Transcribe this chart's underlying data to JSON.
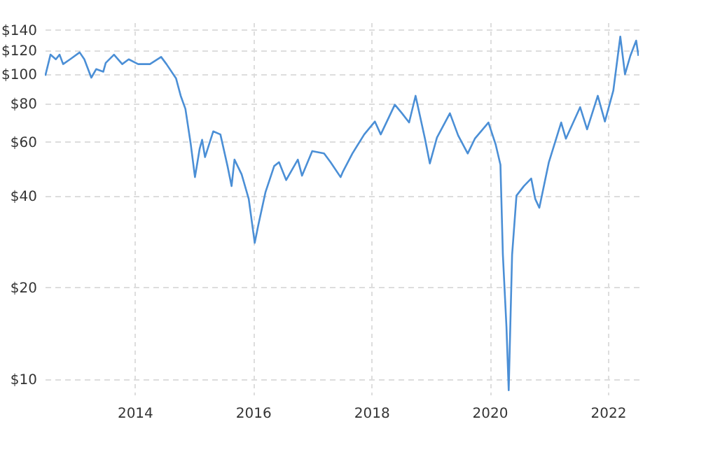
{
  "chart_data": {
    "type": "line",
    "x": [
      "2012-06-28",
      "2012-07-30",
      "2012-09-01",
      "2012-09-24",
      "2012-10-16",
      "2012-11-28",
      "2013-01-26",
      "2013-02-24",
      "2013-04-08",
      "2013-05-08",
      "2013-06-21",
      "2013-07-06",
      "2013-08-26",
      "2013-10-16",
      "2013-11-25",
      "2014-01-22",
      "2014-04-05",
      "2014-06-13",
      "2014-07-16",
      "2014-09-13",
      "2014-10-12",
      "2014-11-10",
      "2014-12-13",
      "2015-01-08",
      "2015-02-06",
      "2015-02-21",
      "2015-03-11",
      "2015-05-01",
      "2015-06-14",
      "2015-07-28",
      "2015-08-22",
      "2015-09-09",
      "2015-10-23",
      "2015-12-06",
      "2016-01-12",
      "2016-02-03",
      "2016-03-18",
      "2016-05-11",
      "2016-06-10",
      "2016-07-24",
      "2016-10-04",
      "2016-10-30",
      "2017-01-01",
      "2017-03-15",
      "2017-04-24",
      "2017-06-25",
      "2017-07-10",
      "2017-09-06",
      "2017-11-18",
      "2018-01-23",
      "2018-02-28",
      "2018-05-26",
      "2018-07-09",
      "2018-08-22",
      "2018-10-01",
      "2018-11-28",
      "2018-12-28",
      "2019-02-10",
      "2019-05-01",
      "2019-06-21",
      "2019-08-19",
      "2019-10-02",
      "2019-12-25",
      "2020-02-07",
      "2020-03-08",
      "2020-03-23",
      "2020-04-14",
      "2020-04-28",
      "2020-05-19",
      "2020-06-15",
      "2020-07-31",
      "2020-09-14",
      "2020-10-09",
      "2020-11-03",
      "2021-01-01",
      "2021-03-18",
      "2021-04-16",
      "2021-07-13",
      "2021-08-25",
      "2021-10-30",
      "2021-12-13",
      "2022-02-03",
      "2022-03-18",
      "2022-04-16",
      "2022-05-19",
      "2022-06-24",
      "2022-07-08"
    ],
    "values": [
      99,
      116,
      112,
      116,
      108,
      112,
      118,
      112,
      97.5,
      104,
      102,
      109,
      116,
      108,
      112,
      108,
      108,
      114,
      108,
      97,
      85,
      77,
      59,
      46,
      57,
      61,
      53.5,
      65,
      63.5,
      50,
      43,
      52.5,
      47,
      39,
      28,
      32,
      41,
      50,
      51.5,
      45,
      52.5,
      46.5,
      56,
      55,
      51.5,
      46,
      48,
      55,
      63.5,
      70,
      63.5,
      79.5,
      74.5,
      69.5,
      85,
      61.5,
      51,
      62,
      74.5,
      63,
      55,
      61.5,
      69.5,
      59,
      50.5,
      25.6,
      14.9,
      9.2,
      25.6,
      40,
      43,
      45.5,
      39,
      36.5,
      51.5,
      69.5,
      61.5,
      78,
      66,
      85,
      70,
      88.5,
      133,
      100,
      115,
      129,
      115
    ],
    "color": "#4b8fd6",
    "xlim": [
      "2012-06-25",
      "2022-07-10"
    ],
    "xticks": [
      "2014",
      "2016",
      "2018",
      "2020",
      "2022"
    ],
    "log": true,
    "ylim": [
      8.9,
      148
    ],
    "yticks": [
      {
        "value": 10,
        "label": "$10"
      },
      {
        "value": 20,
        "label": "$20"
      },
      {
        "value": 40,
        "label": "$40"
      },
      {
        "value": 60,
        "label": "$60"
      },
      {
        "value": 80,
        "label": "$80"
      },
      {
        "value": 100,
        "label": "$100"
      },
      {
        "value": 120,
        "label": "$120"
      },
      {
        "value": 140,
        "label": "$140"
      }
    ],
    "grid": true,
    "line_style": "solid",
    "marker": "none"
  }
}
